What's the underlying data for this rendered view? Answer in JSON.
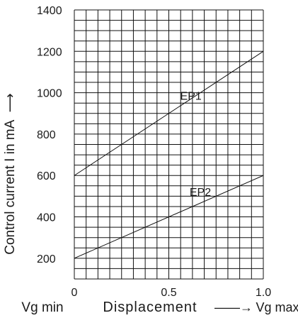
{
  "chart_data": {
    "type": "line",
    "y_axis": {
      "label": "Control current I in mA",
      "arrow": "⟶",
      "ticks": [
        200,
        400,
        600,
        800,
        1000,
        1200,
        1400
      ],
      "ylim": [
        100,
        1400
      ]
    },
    "x_axis": {
      "ticks": [
        "0",
        "0.5",
        "1.0"
      ],
      "tick_values": [
        0,
        0.5,
        1.0
      ],
      "xlim": [
        0,
        1.0
      ],
      "label_left": "Vg min",
      "label_center": "Displacement",
      "label_arrow": "——→",
      "label_right": "Vg max"
    },
    "grid": true,
    "series": [
      {
        "name": "EP1",
        "x": [
          0,
          1.0
        ],
        "y": [
          600,
          1200
        ]
      },
      {
        "name": "EP2",
        "x": [
          0,
          1.0
        ],
        "y": [
          200,
          600
        ]
      }
    ]
  }
}
